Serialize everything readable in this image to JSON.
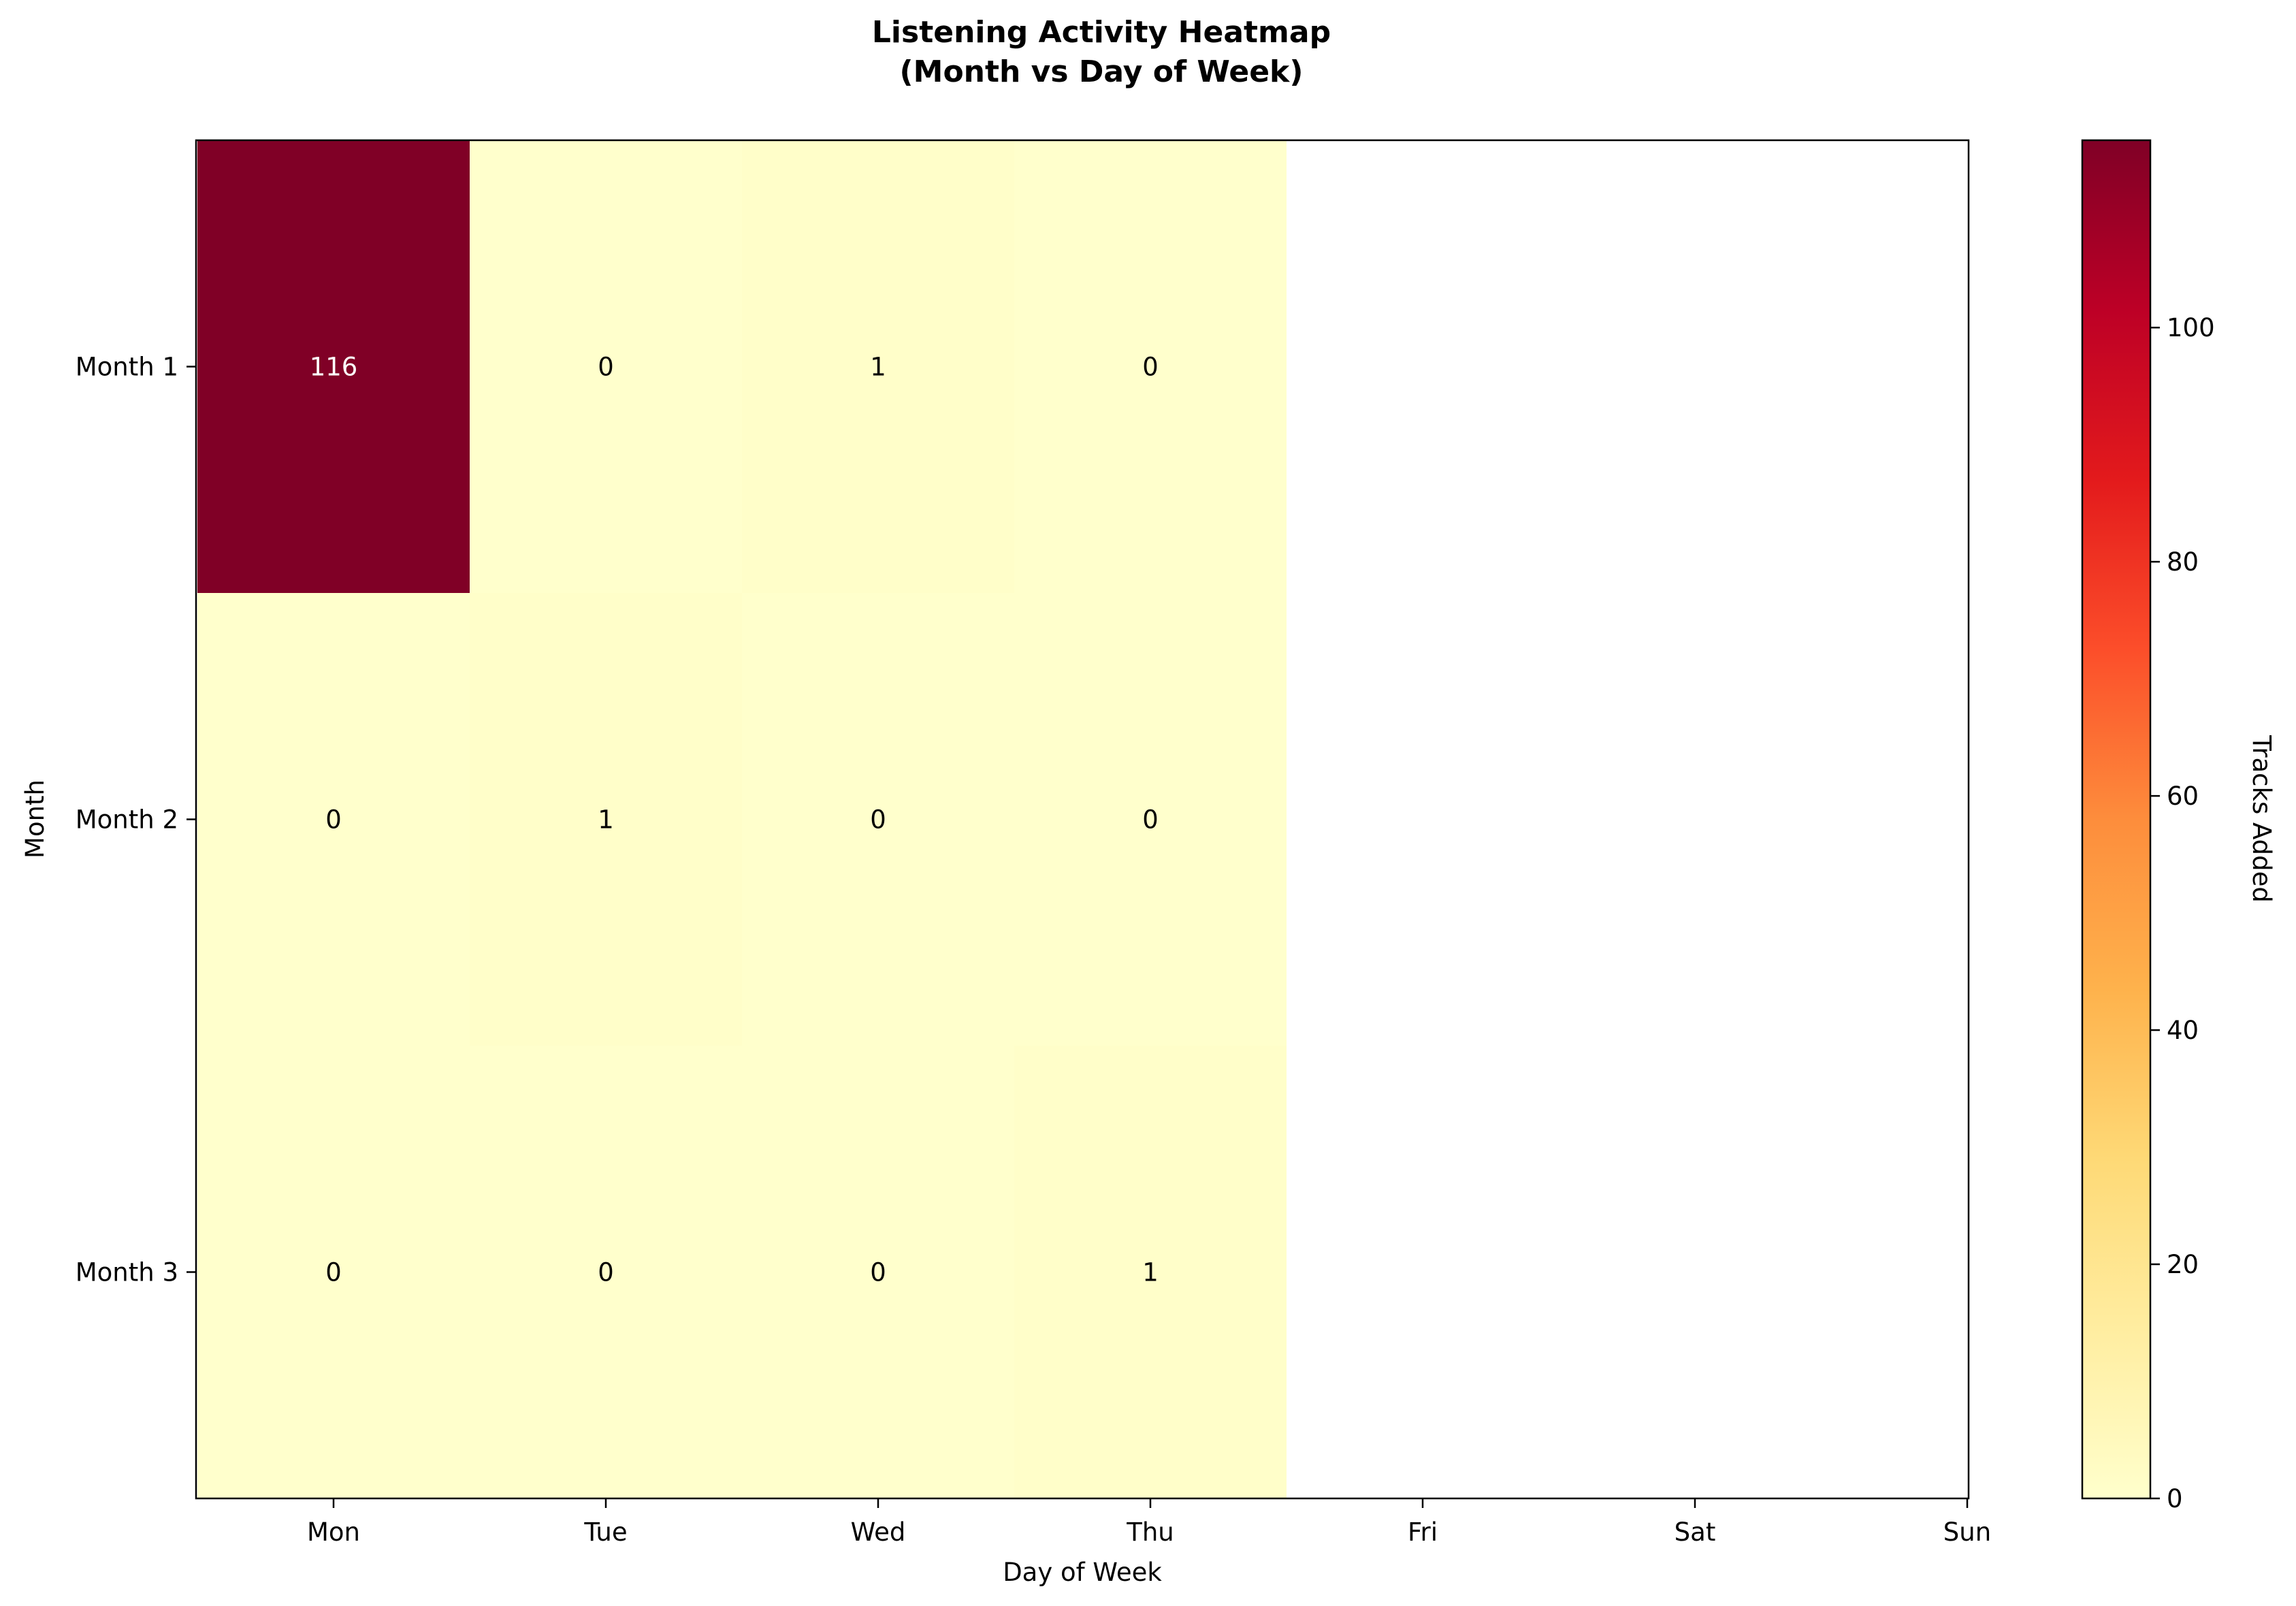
{
  "chart_data": {
    "type": "heatmap",
    "title": "Listening Activity Heatmap\n(Month vs Day of Week)",
    "xlabel": "Day of Week",
    "ylabel": "Month",
    "columns": [
      "Mon",
      "Tue",
      "Wed",
      "Thu",
      "Fri",
      "Sat",
      "Sun"
    ],
    "rows": [
      "Month 1",
      "Month 2",
      "Month 3"
    ],
    "values": [
      [
        116,
        0,
        1,
        0,
        null,
        null,
        null
      ],
      [
        0,
        1,
        0,
        0,
        null,
        null,
        null
      ],
      [
        0,
        0,
        0,
        1,
        null,
        null,
        null
      ]
    ],
    "colormap": "YlOrRd",
    "colorbar": {
      "label": "Tracks Added",
      "range": [
        0,
        116
      ],
      "ticks": [
        0,
        20,
        40,
        60,
        80,
        100
      ]
    },
    "colors": {
      "low": "#ffffcc",
      "high": "#800026",
      "text_light": "#ffffff",
      "text_dark": "#000000"
    }
  }
}
